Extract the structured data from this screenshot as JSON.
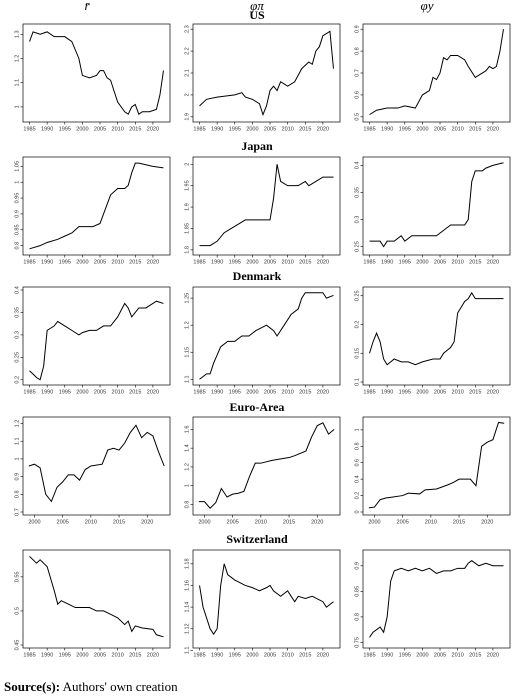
{
  "column_headers": [
    "r̄",
    "φπ",
    "φy"
  ],
  "row_labels": [
    "US",
    "Japan",
    "Denmark",
    "Euro-Area",
    "Switzerland"
  ],
  "source_label": "Source(s):",
  "source_text": "Authors' own creation",
  "chart_data": [
    {
      "type": "line",
      "color": "#000000",
      "x": [
        1985,
        1986,
        1988,
        1990,
        1992,
        1995,
        1997,
        1999,
        2000,
        2002,
        2004,
        2005,
        2006,
        2007,
        2008,
        2010,
        2012,
        2013,
        2014,
        2015,
        2016,
        2017,
        2019,
        2021,
        2022,
        2023
      ],
      "values": [
        1.27,
        1.31,
        1.3,
        1.31,
        1.29,
        1.29,
        1.27,
        1.2,
        1.13,
        1.12,
        1.13,
        1.15,
        1.15,
        1.12,
        1.11,
        1.02,
        0.98,
        0.97,
        1.0,
        1.01,
        0.97,
        0.98,
        0.98,
        0.99,
        1.05,
        1.15
      ],
      "xlim": [
        1984,
        2024
      ],
      "xticks": [
        1985,
        1990,
        1995,
        2000,
        2005,
        2010,
        2015,
        2020
      ],
      "ylim": [
        0.95,
        1.33
      ],
      "yticks": [
        1,
        1.1,
        1.2,
        1.3
      ]
    },
    {
      "type": "line",
      "color": "#000000",
      "x": [
        1985,
        1987,
        1990,
        1995,
        1997,
        1998,
        2000,
        2002,
        2003,
        2004,
        2005,
        2006,
        2007,
        2008,
        2010,
        2012,
        2014,
        2016,
        2017,
        2018,
        2019,
        2020,
        2021,
        2022,
        2023
      ],
      "values": [
        1.95,
        1.98,
        1.99,
        2.0,
        2.01,
        1.99,
        1.98,
        1.96,
        1.91,
        1.95,
        2.02,
        2.04,
        2.02,
        2.06,
        2.04,
        2.06,
        2.12,
        2.15,
        2.14,
        2.2,
        2.22,
        2.27,
        2.28,
        2.29,
        2.12
      ],
      "xlim": [
        1984,
        2024
      ],
      "xticks": [
        1985,
        1990,
        1995,
        2000,
        2005,
        2010,
        2015,
        2020
      ],
      "ylim": [
        1.89,
        2.31
      ],
      "yticks": [
        1.9,
        2,
        2.1,
        2.2,
        2.3
      ]
    },
    {
      "type": "line",
      "color": "#000000",
      "x": [
        1985,
        1987,
        1990,
        1993,
        1995,
        1998,
        2000,
        2002,
        2003,
        2004,
        2005,
        2006,
        2007,
        2008,
        2010,
        2012,
        2013,
        2015,
        2016,
        2018,
        2019,
        2020,
        2021,
        2022,
        2023
      ],
      "values": [
        0.51,
        0.53,
        0.54,
        0.54,
        0.55,
        0.54,
        0.6,
        0.62,
        0.68,
        0.67,
        0.7,
        0.77,
        0.76,
        0.78,
        0.78,
        0.76,
        0.73,
        0.68,
        0.69,
        0.71,
        0.73,
        0.72,
        0.73,
        0.8,
        0.9
      ],
      "xlim": [
        1984,
        2024
      ],
      "xticks": [
        1985,
        1990,
        1995,
        2000,
        2005,
        2010,
        2015,
        2020
      ],
      "ylim": [
        0.49,
        0.91
      ],
      "yticks": [
        0.5,
        0.6,
        0.7,
        0.8,
        0.9
      ]
    },
    {
      "type": "line",
      "color": "#000000",
      "x": [
        1985,
        1988,
        1990,
        1993,
        1995,
        1997,
        1999,
        2000,
        2003,
        2005,
        2006,
        2007,
        2008,
        2010,
        2012,
        2013,
        2014,
        2015,
        2016,
        2018,
        2020,
        2023
      ],
      "values": [
        0.79,
        0.8,
        0.81,
        0.82,
        0.83,
        0.84,
        0.86,
        0.86,
        0.86,
        0.87,
        0.9,
        0.93,
        0.96,
        0.98,
        0.98,
        0.99,
        1.03,
        1.06,
        1.06,
        1.055,
        1.05,
        1.045
      ],
      "xlim": [
        1984,
        2024
      ],
      "xticks": [
        1985,
        1990,
        1995,
        2000,
        2005,
        2010,
        2015,
        2020
      ],
      "ylim": [
        0.78,
        1.07
      ],
      "yticks": [
        0.8,
        0.85,
        0.9,
        0.95,
        1,
        1.05
      ]
    },
    {
      "type": "line",
      "color": "#000000",
      "x": [
        1985,
        1988,
        1990,
        1992,
        1994,
        1996,
        1998,
        2000,
        2003,
        2005,
        2006,
        2007,
        2008,
        2010,
        2013,
        2015,
        2016,
        2018,
        2020,
        2023
      ],
      "values": [
        1.81,
        1.81,
        1.82,
        1.84,
        1.85,
        1.86,
        1.87,
        1.87,
        1.87,
        1.87,
        1.92,
        2.0,
        1.96,
        1.95,
        1.95,
        1.96,
        1.95,
        1.96,
        1.97,
        1.97
      ],
      "xlim": [
        1984,
        2024
      ],
      "xticks": [
        1985,
        1990,
        1995,
        2000,
        2005,
        2010,
        2015,
        2020
      ],
      "ylim": [
        1.795,
        2.01
      ],
      "yticks": [
        1.8,
        1.85,
        1.9,
        1.95,
        2
      ]
    },
    {
      "type": "line",
      "color": "#000000",
      "x": [
        1985,
        1988,
        1989,
        1990,
        1992,
        1994,
        1995,
        1997,
        2000,
        2004,
        2006,
        2008,
        2010,
        2012,
        2013,
        2014,
        2015,
        2017,
        2018,
        2020,
        2023
      ],
      "values": [
        0.26,
        0.26,
        0.25,
        0.26,
        0.26,
        0.27,
        0.26,
        0.27,
        0.27,
        0.27,
        0.28,
        0.29,
        0.29,
        0.29,
        0.3,
        0.37,
        0.39,
        0.39,
        0.395,
        0.4,
        0.405
      ],
      "xlim": [
        1984,
        2024
      ],
      "xticks": [
        1985,
        1990,
        1995,
        2000,
        2005,
        2010,
        2015,
        2020
      ],
      "ylim": [
        0.24,
        0.41
      ],
      "yticks": [
        0.25,
        0.3,
        0.35,
        0.4
      ]
    },
    {
      "type": "line",
      "color": "#000000",
      "x": [
        1985,
        1987,
        1988,
        1989,
        1990,
        1992,
        1993,
        1995,
        1997,
        1999,
        2000,
        2002,
        2004,
        2006,
        2008,
        2010,
        2012,
        2013,
        2014,
        2015,
        2016,
        2018,
        2020,
        2021,
        2023
      ],
      "values": [
        0.22,
        0.205,
        0.2,
        0.23,
        0.31,
        0.32,
        0.33,
        0.32,
        0.31,
        0.3,
        0.305,
        0.31,
        0.31,
        0.32,
        0.32,
        0.34,
        0.37,
        0.36,
        0.34,
        0.35,
        0.36,
        0.36,
        0.37,
        0.375,
        0.37
      ],
      "xlim": [
        1984,
        2024
      ],
      "xticks": [
        1985,
        1990,
        1995,
        2000,
        2005,
        2010,
        2015,
        2020
      ],
      "ylim": [
        0.195,
        0.4
      ],
      "yticks": [
        0.2,
        0.25,
        0.3,
        0.35,
        0.4
      ]
    },
    {
      "type": "line",
      "color": "#000000",
      "x": [
        1985,
        1987,
        1988,
        1989,
        1991,
        1993,
        1995,
        1997,
        1999,
        2001,
        2004,
        2006,
        2007,
        2009,
        2011,
        2013,
        2014,
        2015,
        2018,
        2020,
        2021,
        2023
      ],
      "values": [
        1.1,
        1.11,
        1.11,
        1.13,
        1.16,
        1.17,
        1.17,
        1.18,
        1.18,
        1.19,
        1.2,
        1.19,
        1.18,
        1.2,
        1.22,
        1.23,
        1.25,
        1.26,
        1.26,
        1.26,
        1.25,
        1.255
      ],
      "xlim": [
        1984,
        2024
      ],
      "xticks": [
        1985,
        1990,
        1995,
        2000,
        2005,
        2010,
        2015,
        2020
      ],
      "ylim": [
        1.095,
        1.265
      ],
      "yticks": [
        1.1,
        1.15,
        1.2,
        1.25
      ]
    },
    {
      "type": "line",
      "color": "#000000",
      "x": [
        1985,
        1986,
        1987,
        1988,
        1989,
        1990,
        1992,
        1994,
        1996,
        1998,
        2000,
        2003,
        2005,
        2006,
        2008,
        2009,
        2010,
        2012,
        2013,
        2014,
        2015,
        2017,
        2020,
        2023
      ],
      "values": [
        0.15,
        0.17,
        0.185,
        0.17,
        0.14,
        0.13,
        0.14,
        0.135,
        0.135,
        0.13,
        0.135,
        0.14,
        0.14,
        0.15,
        0.16,
        0.17,
        0.22,
        0.24,
        0.245,
        0.255,
        0.245,
        0.245,
        0.245,
        0.245
      ],
      "xlim": [
        1984,
        2024
      ],
      "xticks": [
        1985,
        1990,
        1995,
        2000,
        2005,
        2010,
        2015,
        2020
      ],
      "ylim": [
        0.1,
        0.26
      ],
      "yticks": [
        0.1,
        0.15,
        0.2,
        0.25
      ]
    },
    {
      "type": "line",
      "color": "#000000",
      "x": [
        1999,
        2000,
        2001,
        2002,
        2003,
        2004,
        2005,
        2006,
        2007,
        2008,
        2009,
        2010,
        2012,
        2013,
        2014,
        2015,
        2016,
        2017,
        2018,
        2019,
        2020,
        2021,
        2022,
        2023
      ],
      "values": [
        0.96,
        0.97,
        0.95,
        0.8,
        0.76,
        0.84,
        0.87,
        0.91,
        0.91,
        0.88,
        0.94,
        0.96,
        0.97,
        1.05,
        1.06,
        1.05,
        1.09,
        1.15,
        1.19,
        1.12,
        1.15,
        1.13,
        1.04,
        0.96
      ],
      "xlim": [
        1998.5,
        2023.5
      ],
      "xticks": [
        2000,
        2005,
        2010,
        2015,
        2020
      ],
      "ylim": [
        0.7,
        1.22
      ],
      "yticks": [
        0.7,
        0.8,
        0.9,
        1,
        1.1,
        1.2
      ]
    },
    {
      "type": "line",
      "color": "#000000",
      "x": [
        1999,
        2000,
        2001,
        2002,
        2003,
        2004,
        2005,
        2006,
        2007,
        2008,
        2009,
        2010,
        2012,
        2013,
        2015,
        2016,
        2018,
        2019,
        2020,
        2021,
        2022,
        2023
      ],
      "values": [
        0.83,
        0.83,
        0.76,
        0.82,
        0.97,
        0.88,
        0.91,
        0.92,
        0.94,
        1.1,
        1.24,
        1.24,
        1.27,
        1.28,
        1.3,
        1.32,
        1.37,
        1.52,
        1.64,
        1.67,
        1.55,
        1.6
      ],
      "xlim": [
        1998.5,
        2023.5
      ],
      "xticks": [
        2000,
        2005,
        2010,
        2015,
        2020
      ],
      "ylim": [
        0.72,
        1.7
      ],
      "yticks": [
        0.8,
        1,
        1.2,
        1.4,
        1.6
      ]
    },
    {
      "type": "line",
      "color": "#000000",
      "x": [
        1999,
        2000,
        2001,
        2002,
        2003,
        2005,
        2006,
        2008,
        2009,
        2011,
        2013,
        2014,
        2015,
        2016,
        2017,
        2018,
        2019,
        2020,
        2021,
        2022,
        2023
      ],
      "values": [
        0.05,
        0.06,
        0.15,
        0.17,
        0.18,
        0.2,
        0.23,
        0.22,
        0.27,
        0.28,
        0.33,
        0.36,
        0.4,
        0.4,
        0.4,
        0.32,
        0.8,
        0.85,
        0.88,
        1.09,
        1.08
      ],
      "xlim": [
        1998.5,
        2023.5
      ],
      "xticks": [
        2000,
        2005,
        2010,
        2015,
        2020
      ],
      "ylim": [
        0,
        1.12
      ],
      "yticks": [
        0,
        0.2,
        0.4,
        0.6,
        0.8,
        1
      ]
    },
    {
      "type": "line",
      "color": "#000000",
      "x": [
        1985,
        1986,
        1987,
        1988,
        1990,
        1992,
        1993,
        1994,
        1996,
        1998,
        2000,
        2002,
        2004,
        2006,
        2008,
        2010,
        2012,
        2013,
        2014,
        2015,
        2017,
        2020,
        2021,
        2023
      ],
      "values": [
        0.58,
        0.575,
        0.57,
        0.575,
        0.565,
        0.53,
        0.51,
        0.515,
        0.51,
        0.505,
        0.505,
        0.505,
        0.5,
        0.5,
        0.495,
        0.49,
        0.48,
        0.485,
        0.47,
        0.478,
        0.475,
        0.473,
        0.465,
        0.462
      ],
      "xlim": [
        1984,
        2024
      ],
      "xticks": [
        1985,
        1990,
        1995,
        2000,
        2005,
        2010,
        2015,
        2020
      ],
      "ylim": [
        0.45,
        0.585
      ],
      "yticks": [
        0.45,
        0.5,
        0.55
      ]
    },
    {
      "type": "line",
      "color": "#000000",
      "x": [
        1985,
        1986,
        1988,
        1989,
        1990,
        1991,
        1992,
        1993,
        1995,
        1998,
        2000,
        2002,
        2004,
        2005,
        2006,
        2008,
        2010,
        2011,
        2012,
        2013,
        2015,
        2017,
        2020,
        2021,
        2023
      ],
      "values": [
        1.16,
        1.14,
        1.12,
        1.115,
        1.12,
        1.16,
        1.18,
        1.17,
        1.165,
        1.16,
        1.158,
        1.155,
        1.158,
        1.16,
        1.155,
        1.15,
        1.155,
        1.15,
        1.145,
        1.15,
        1.148,
        1.15,
        1.145,
        1.14,
        1.145
      ],
      "xlim": [
        1984,
        2024
      ],
      "xticks": [
        1985,
        1990,
        1995,
        2000,
        2005,
        2010,
        2015,
        2020
      ],
      "ylim": [
        1.105,
        1.19
      ],
      "yticks": [
        1.1,
        1.12,
        1.14,
        1.16,
        1.18
      ]
    },
    {
      "type": "line",
      "color": "#000000",
      "x": [
        1985,
        1986,
        1988,
        1989,
        1990,
        1991,
        1992,
        1994,
        1996,
        1998,
        2000,
        2002,
        2004,
        2006,
        2008,
        2010,
        2012,
        2013,
        2014,
        2016,
        2018,
        2020,
        2023
      ],
      "values": [
        0.76,
        0.77,
        0.78,
        0.77,
        0.8,
        0.87,
        0.89,
        0.895,
        0.89,
        0.895,
        0.89,
        0.895,
        0.885,
        0.89,
        0.89,
        0.895,
        0.895,
        0.905,
        0.91,
        0.9,
        0.905,
        0.9,
        0.9
      ],
      "xlim": [
        1984,
        2024
      ],
      "xticks": [
        1985,
        1990,
        1995,
        2000,
        2005,
        2010,
        2015,
        2020
      ],
      "ylim": [
        0.745,
        0.925
      ],
      "yticks": [
        0.75,
        0.8,
        0.85,
        0.9
      ]
    }
  ]
}
